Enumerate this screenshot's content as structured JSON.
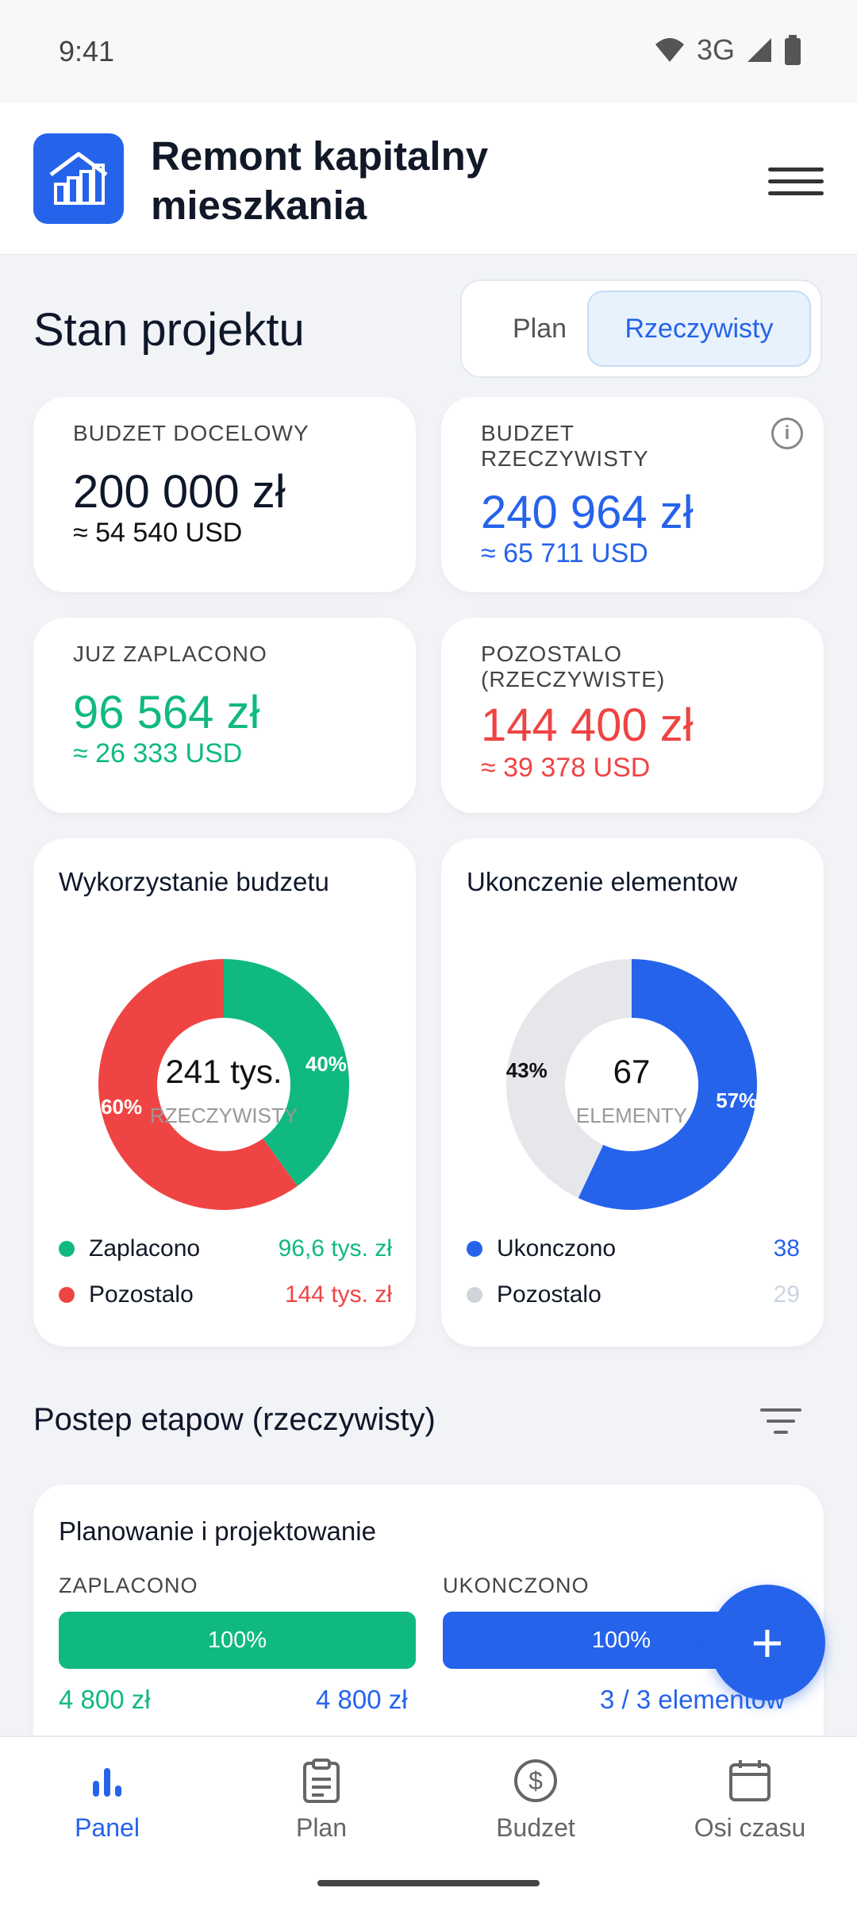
{
  "status": {
    "time": "9:41",
    "network": "3G"
  },
  "app": {
    "title": "Remont kapitalny mieszkania"
  },
  "overview": {
    "title": "Stan projektu",
    "toggle": {
      "plan": "Plan",
      "actual": "Rzeczywisty",
      "selected": "Rzeczywisty"
    }
  },
  "stats": {
    "target": {
      "label": "BUDZET DOCELOWY",
      "value": "200 000 zł",
      "usd": "≈ 54 540 USD"
    },
    "actual": {
      "label": "BUDZET RZECZYWISTY",
      "value": "240 964 zł",
      "usd": "≈ 65 711 USD"
    },
    "paid": {
      "label": "JUZ ZAPLACONO",
      "value": "96 564 zł",
      "usd": "≈ 26 333 USD"
    },
    "remaining": {
      "label": "POZOSTALO (RZECZYWISTE)",
      "value": "144 400 zł",
      "usd": "≈ 39 378 USD"
    }
  },
  "chart_data": [
    {
      "type": "pie",
      "title": "Wykorzystanie budzetu",
      "center_value": "241 tys.",
      "center_label": "RZECZYWISTY",
      "categories": [
        "Zaplacono",
        "Pozostalo"
      ],
      "values": [
        40,
        60
      ],
      "value_labels": [
        "40%",
        "60%"
      ],
      "legend_values": [
        "96,6 tys. zł",
        "144 tys. zł"
      ],
      "colors": [
        "#10b981",
        "#ef4444"
      ]
    },
    {
      "type": "pie",
      "title": "Ukonczenie elementow",
      "center_value": "67",
      "center_label": "ELEMENTY",
      "categories": [
        "Ukonczono",
        "Pozostalo"
      ],
      "values": [
        57,
        43
      ],
      "value_labels": [
        "57%",
        "43%"
      ],
      "legend_values": [
        "38",
        "29"
      ],
      "colors": [
        "#2563eb",
        "#e5e7eb"
      ]
    }
  ],
  "stages": {
    "title": "Postep etapow (rzeczywisty)",
    "items": [
      {
        "name": "Planowanie i projektowanie",
        "paid_label": "ZAPLACONO",
        "paid_pct": "100%",
        "paid_amount": "4 800 zł",
        "paid_total": "4 800 zł",
        "done_label": "UKONCZONO",
        "done_pct": "100%",
        "done_count": "3 / 3 elementow"
      }
    ]
  },
  "fab": {
    "label": "+"
  },
  "nav": {
    "items": [
      {
        "label": "Panel",
        "icon": "bar-chart-icon"
      },
      {
        "label": "Plan",
        "icon": "clipboard-icon"
      },
      {
        "label": "Budzet",
        "icon": "dollar-circle-icon"
      },
      {
        "label": "Osi czasu",
        "icon": "calendar-icon"
      }
    ],
    "active": "Panel"
  },
  "colors": {
    "primary": "#2563eb",
    "green": "#10b981",
    "red": "#ef4444",
    "gray": "#e5e7eb"
  }
}
